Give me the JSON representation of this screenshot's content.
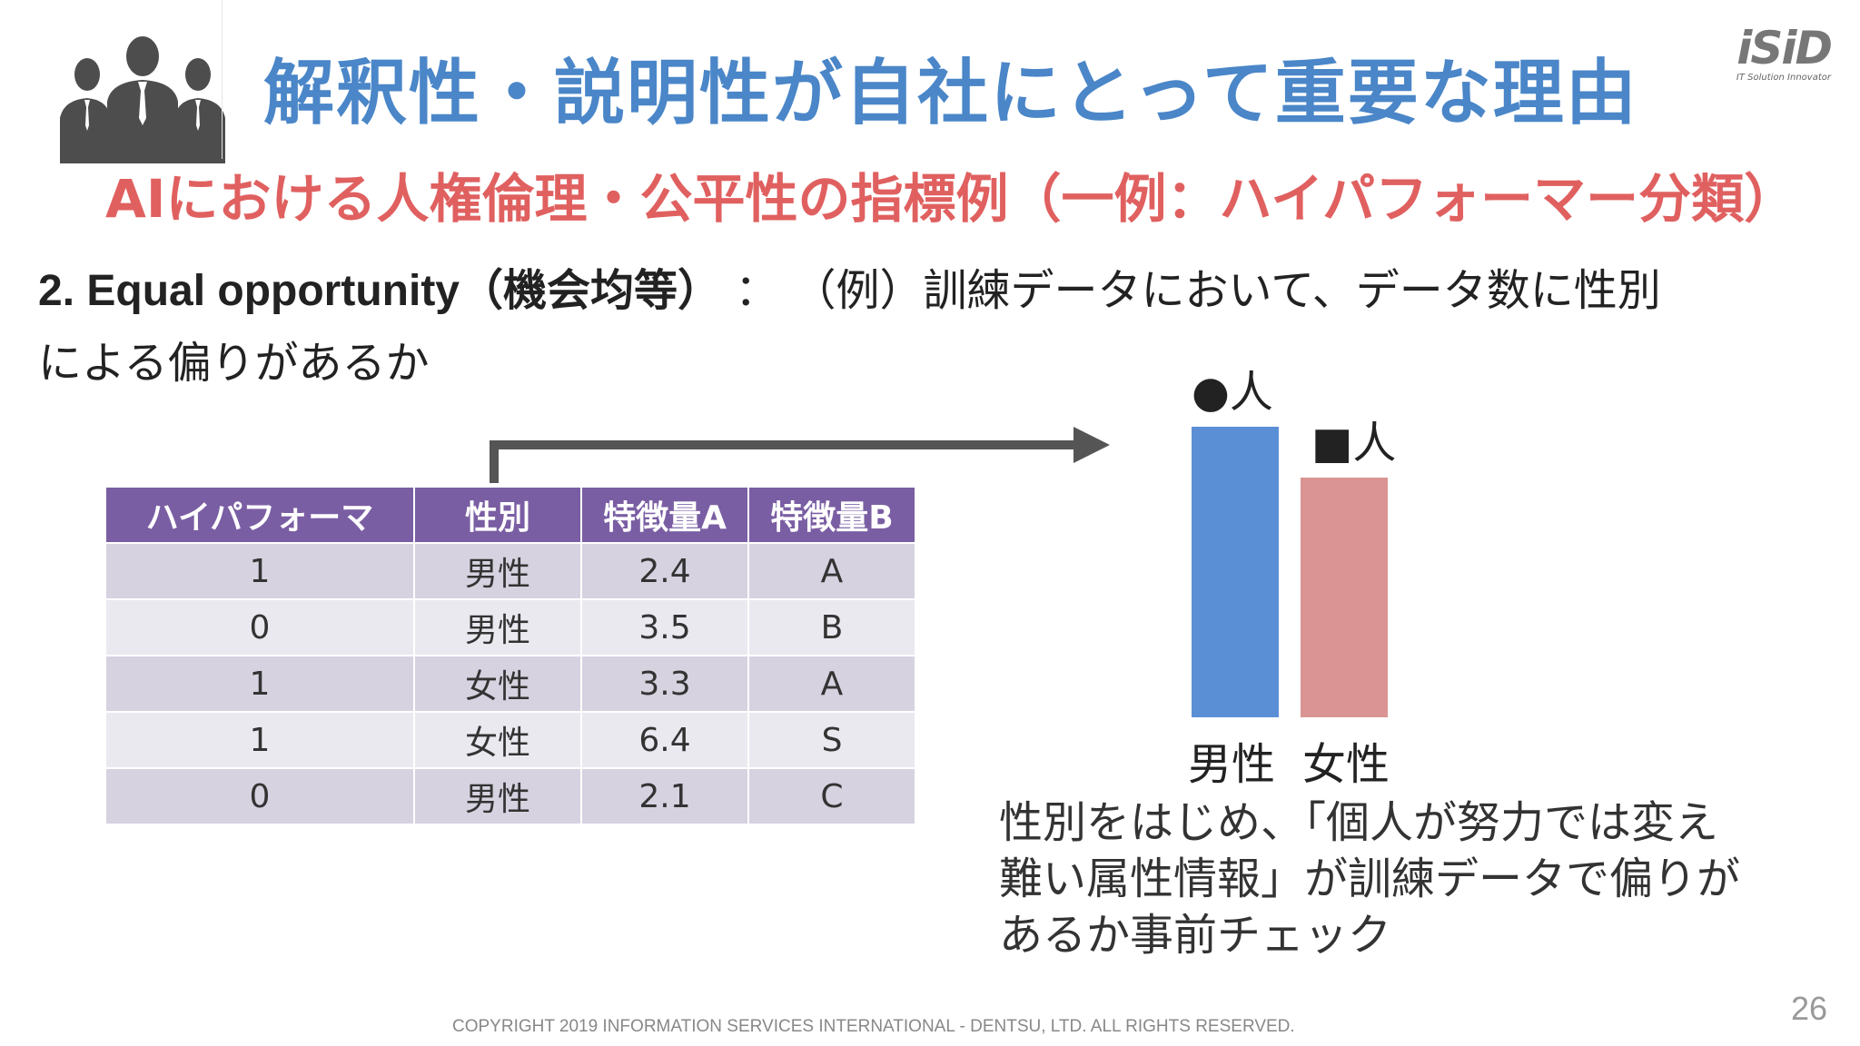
{
  "header": {
    "title": "解釈性・説明性が自社にとって重要な理由",
    "logo_text": "iSiD",
    "logo_tagline": "IT Solution Innovator",
    "icon": "business-people-icon"
  },
  "subtitle": "AIにおける人権倫理・公平性の指標例（一例：ハイパフォーマー分類）",
  "body": {
    "term": "2. Equal opportunity（機会均等）",
    "separator": "：",
    "description_part1": "（例）訓練データにおいて、データ数に性別",
    "description_part2": "による偏りがあるか"
  },
  "table": {
    "headers": [
      "ハイパフォーマ",
      "性別",
      "特徴量A",
      "特徴量B"
    ],
    "rows": [
      [
        "1",
        "男性",
        "2.4",
        "A"
      ],
      [
        "0",
        "男性",
        "3.5",
        "B"
      ],
      [
        "1",
        "女性",
        "3.3",
        "A"
      ],
      [
        "1",
        "女性",
        "6.4",
        "S"
      ],
      [
        "0",
        "男性",
        "2.1",
        "C"
      ]
    ]
  },
  "chart_data": {
    "type": "bar",
    "categories": [
      "男性",
      "女性"
    ],
    "value_labels": [
      "●人",
      "■人"
    ],
    "values": [
      320,
      264
    ],
    "colors": [
      "#5a8fd6",
      "#da9494"
    ]
  },
  "conclusion": {
    "line1": "性別をはじめ、「個人が努力では変え",
    "line2": "難い属性情報」が訓練データで偏りが",
    "line3": "あるか事前チェック"
  },
  "footer": {
    "page_number": "26",
    "copyright": "COPYRIGHT 2019 INFORMATION SERVICES INTERNATIONAL - DENTSU, LTD. ALL RIGHTS RESERVED."
  },
  "colors": {
    "title": "#4a86c8",
    "subtitle": "#e06060",
    "table_header": "#7a5ea3"
  }
}
